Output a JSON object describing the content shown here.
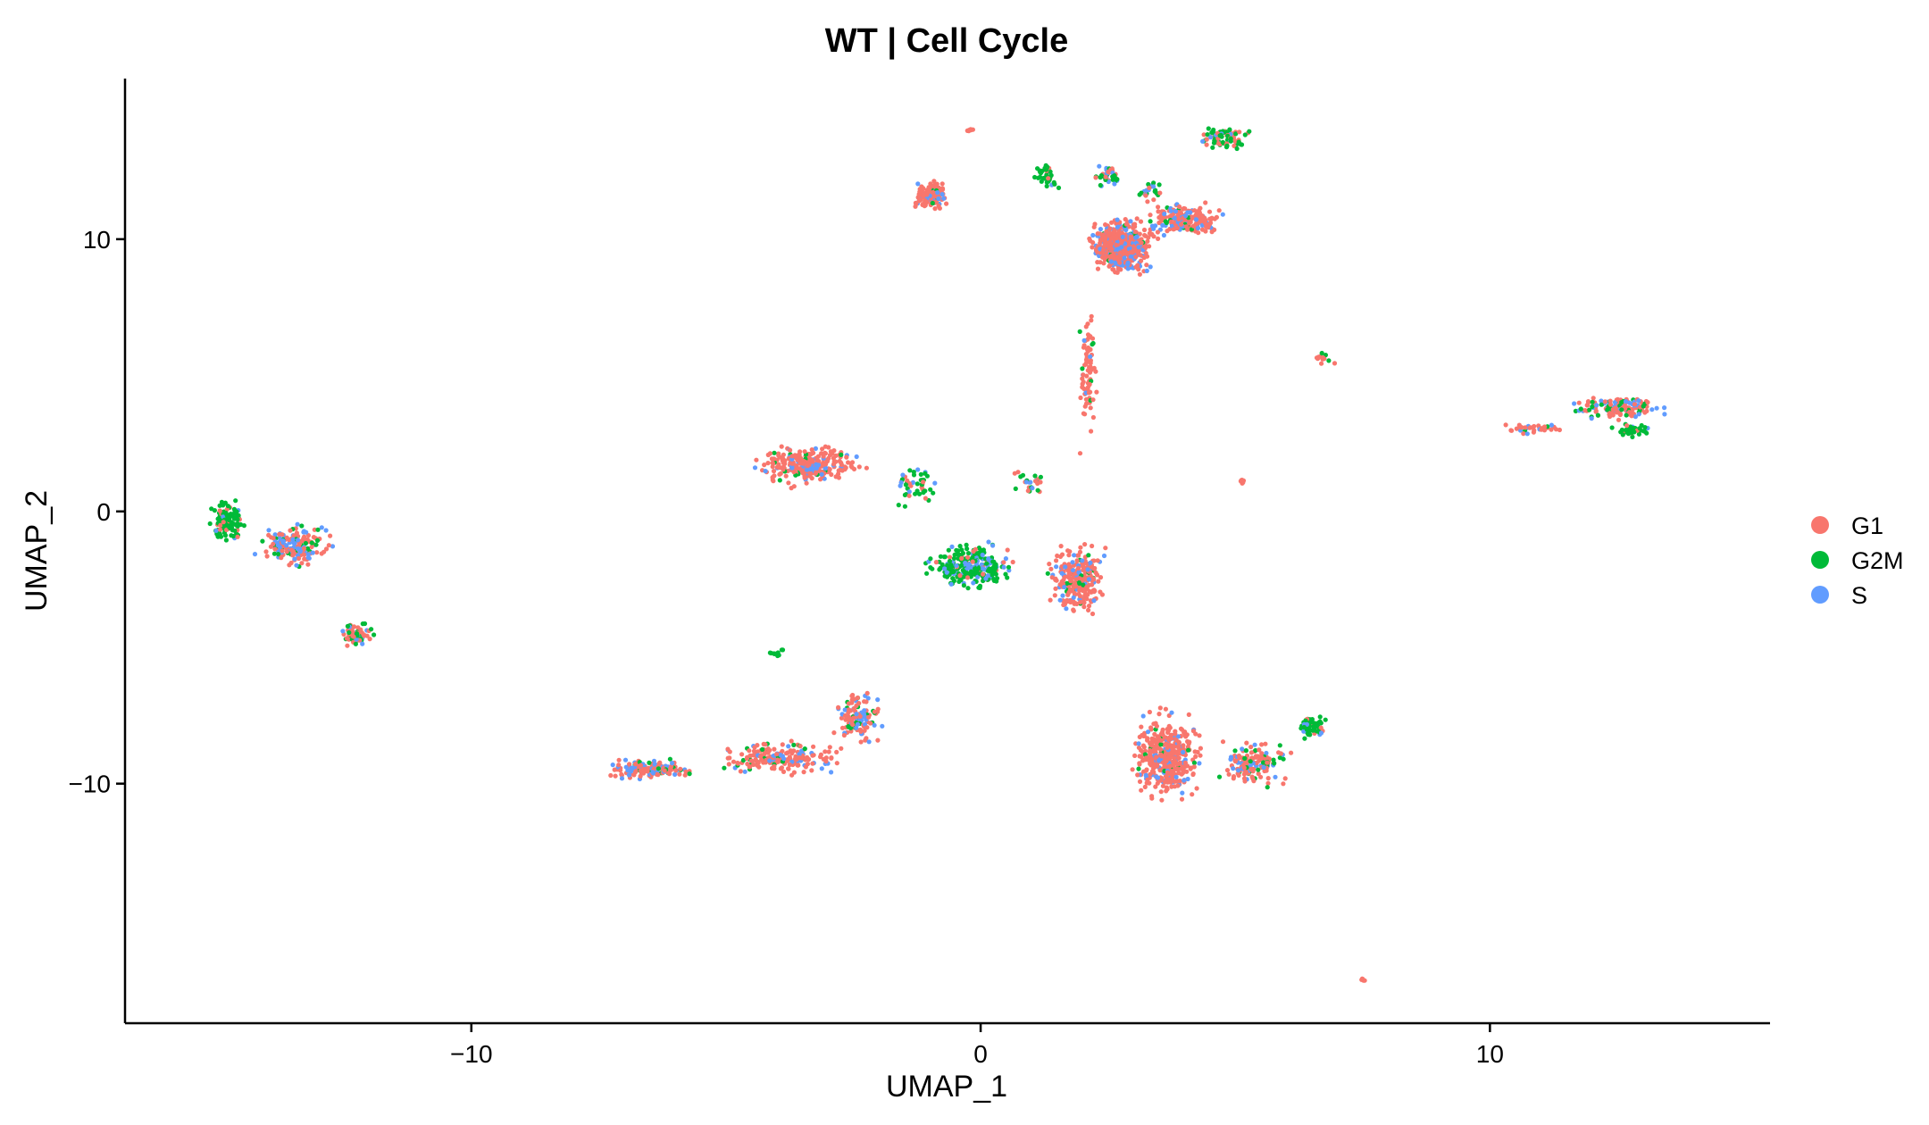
{
  "chart_data": {
    "type": "scatter",
    "title": "WT | Cell Cycle",
    "xlabel": "UMAP_1",
    "ylabel": "UMAP_2",
    "xlim": [
      -16.8,
      15.5
    ],
    "ylim": [
      -18.8,
      15.9
    ],
    "x_ticks": [
      -10,
      0,
      10
    ],
    "x_tick_labels": [
      "−10",
      "0",
      "10"
    ],
    "y_ticks": [
      -10,
      0,
      10
    ],
    "y_tick_labels": [
      "−10",
      "0",
      "10"
    ],
    "grid": false,
    "legend_position": "right",
    "series": [
      {
        "name": "G1",
        "color": "#F8766D"
      },
      {
        "name": "G2M",
        "color": "#00BA38"
      },
      {
        "name": "S",
        "color": "#619CFF"
      }
    ],
    "clusters": [
      {
        "x": [
          2.0,
          3.5
        ],
        "y": [
          8.5,
          11.0
        ],
        "n": 560,
        "mix": [
          0.72,
          0.03,
          0.25
        ]
      },
      {
        "x": [
          3.0,
          5.0
        ],
        "y": [
          10.0,
          11.4
        ],
        "n": 200,
        "mix": [
          0.7,
          0.05,
          0.25
        ]
      },
      {
        "x": [
          1.0,
          1.6
        ],
        "y": [
          11.8,
          12.9
        ],
        "n": 40,
        "mix": [
          0.15,
          0.75,
          0.1
        ]
      },
      {
        "x": [
          2.2,
          2.8
        ],
        "y": [
          11.8,
          12.8
        ],
        "n": 40,
        "mix": [
          0.2,
          0.6,
          0.2
        ]
      },
      {
        "x": [
          3.0,
          3.7
        ],
        "y": [
          11.2,
          12.3
        ],
        "n": 25,
        "mix": [
          0.3,
          0.5,
          0.2
        ]
      },
      {
        "x": [
          -1.4,
          -0.5
        ],
        "y": [
          11.0,
          12.2
        ],
        "n": 120,
        "mix": [
          0.75,
          0.05,
          0.2
        ]
      },
      {
        "x": [
          4.2,
          5.4
        ],
        "y": [
          13.2,
          14.2
        ],
        "n": 80,
        "mix": [
          0.3,
          0.5,
          0.2
        ]
      },
      {
        "x": [
          1.9,
          2.3
        ],
        "y": [
          2.0,
          8.0
        ],
        "n": 80,
        "mix": [
          0.85,
          0.1,
          0.05
        ]
      },
      {
        "x": [
          -4.6,
          -2.2
        ],
        "y": [
          0.8,
          2.6
        ],
        "n": 280,
        "mix": [
          0.8,
          0.05,
          0.15
        ]
      },
      {
        "x": [
          -1.8,
          -0.8
        ],
        "y": [
          0.0,
          1.8
        ],
        "n": 50,
        "mix": [
          0.2,
          0.65,
          0.15
        ]
      },
      {
        "x": [
          -1.2,
          0.8
        ],
        "y": [
          -3.0,
          -1.0
        ],
        "n": 260,
        "mix": [
          0.1,
          0.65,
          0.25
        ]
      },
      {
        "x": [
          1.2,
          2.6
        ],
        "y": [
          -4.0,
          -1.0
        ],
        "n": 260,
        "mix": [
          0.72,
          0.05,
          0.23
        ]
      },
      {
        "x": [
          2.8,
          4.5
        ],
        "y": [
          -11.0,
          -7.0
        ],
        "n": 420,
        "mix": [
          0.82,
          0.05,
          0.13
        ]
      },
      {
        "x": [
          4.5,
          6.2
        ],
        "y": [
          -10.3,
          -8.2
        ],
        "n": 140,
        "mix": [
          0.6,
          0.2,
          0.2
        ]
      },
      {
        "x": [
          6.2,
          6.8
        ],
        "y": [
          -8.4,
          -7.4
        ],
        "n": 60,
        "mix": [
          0.1,
          0.7,
          0.2
        ]
      },
      {
        "x": [
          -7.5,
          -5.5
        ],
        "y": [
          -9.9,
          -9.0
        ],
        "n": 140,
        "mix": [
          0.6,
          0.1,
          0.3
        ]
      },
      {
        "x": [
          -5.5,
          -2.5
        ],
        "y": [
          -9.8,
          -8.3
        ],
        "n": 200,
        "mix": [
          0.75,
          0.1,
          0.15
        ]
      },
      {
        "x": [
          -3.0,
          -1.8
        ],
        "y": [
          -8.8,
          -6.3
        ],
        "n": 120,
        "mix": [
          0.55,
          0.2,
          0.25
        ]
      },
      {
        "x": [
          -15.2,
          -14.4
        ],
        "y": [
          -1.2,
          0.5
        ],
        "n": 130,
        "mix": [
          0.1,
          0.85,
          0.05
        ]
      },
      {
        "x": [
          -14.4,
          -12.6
        ],
        "y": [
          -2.2,
          -0.3
        ],
        "n": 170,
        "mix": [
          0.55,
          0.15,
          0.3
        ]
      },
      {
        "x": [
          -12.7,
          -11.8
        ],
        "y": [
          -5.0,
          -4.0
        ],
        "n": 70,
        "mix": [
          0.5,
          0.3,
          0.2
        ]
      },
      {
        "x": [
          10.0,
          11.5
        ],
        "y": [
          2.8,
          3.3
        ],
        "n": 40,
        "mix": [
          0.7,
          0.05,
          0.25
        ]
      },
      {
        "x": [
          11.5,
          13.6
        ],
        "y": [
          3.3,
          4.3
        ],
        "n": 160,
        "mix": [
          0.6,
          0.15,
          0.25
        ]
      },
      {
        "x": [
          12.3,
          13.3
        ],
        "y": [
          2.7,
          3.3
        ],
        "n": 50,
        "mix": [
          0.1,
          0.85,
          0.05
        ]
      },
      {
        "x": [
          6.5,
          7.0
        ],
        "y": [
          5.3,
          5.9
        ],
        "n": 15,
        "mix": [
          0.8,
          0.2,
          0.0
        ]
      },
      {
        "x": [
          5.0,
          5.3
        ],
        "y": [
          1.0,
          1.2
        ],
        "n": 8,
        "mix": [
          1.0,
          0.0,
          0.0
        ]
      },
      {
        "x": [
          7.4,
          7.6
        ],
        "y": [
          -17.3,
          -17.1
        ],
        "n": 5,
        "mix": [
          1.0,
          0.0,
          0.0
        ]
      },
      {
        "x": [
          -4.2,
          -3.8
        ],
        "y": [
          -5.4,
          -5.0
        ],
        "n": 10,
        "mix": [
          0.0,
          1.0,
          0.0
        ]
      },
      {
        "x": [
          -0.3,
          -0.1
        ],
        "y": [
          13.9,
          14.1
        ],
        "n": 8,
        "mix": [
          1.0,
          0.0,
          0.0
        ]
      },
      {
        "x": [
          0.5,
          1.5
        ],
        "y": [
          0.5,
          1.8
        ],
        "n": 25,
        "mix": [
          0.3,
          0.4,
          0.3
        ]
      }
    ]
  }
}
